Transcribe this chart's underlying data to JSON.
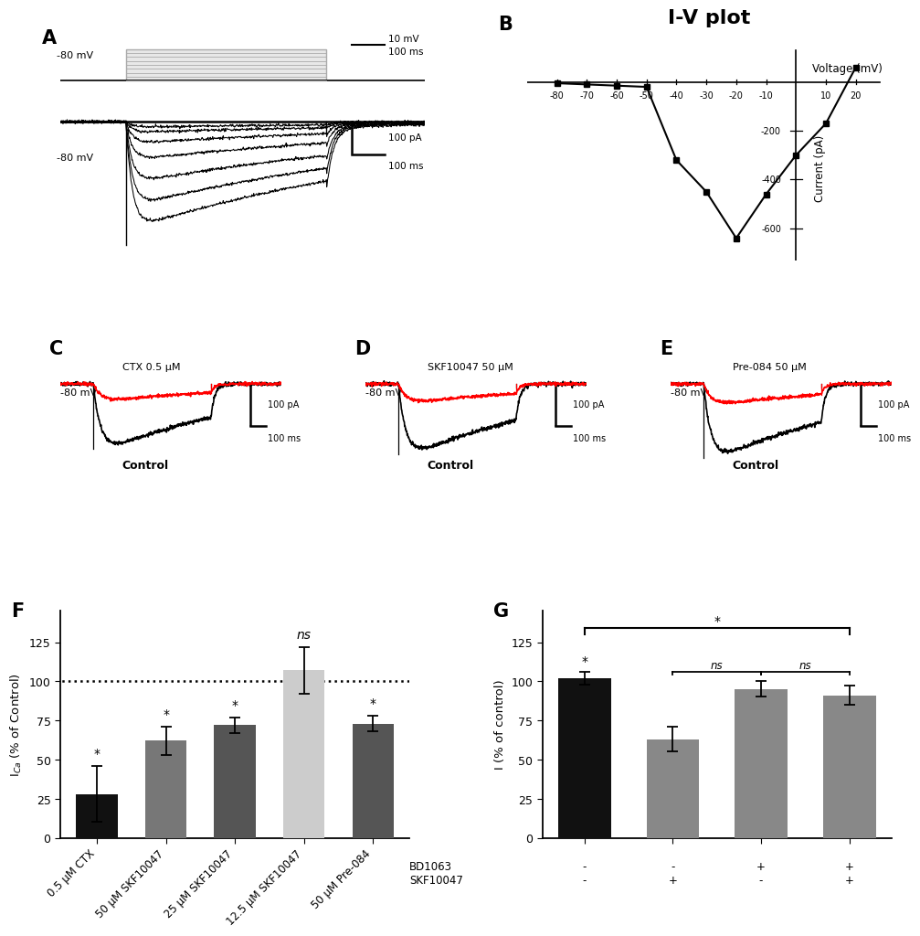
{
  "panel_labels": [
    "A",
    "B",
    "C",
    "D",
    "E",
    "F",
    "G"
  ],
  "iv_voltage": [
    -80,
    -70,
    -60,
    -50,
    -40,
    -30,
    -20,
    -10,
    0,
    10,
    20
  ],
  "iv_current": [
    -5,
    -10,
    -15,
    -20,
    -320,
    -450,
    -640,
    -460,
    -300,
    -170,
    60
  ],
  "bar_F_labels": [
    "0.5 μM CTX",
    "50 μM SKF10047",
    "25 μM SKF10047",
    "12.5 μM SKF10047",
    "50 μM Pre-084"
  ],
  "bar_F_values": [
    28,
    62,
    72,
    107,
    73
  ],
  "bar_F_errors": [
    18,
    9,
    5,
    15,
    5
  ],
  "bar_F_colors": [
    "#111111",
    "#777777",
    "#555555",
    "#cccccc",
    "#555555"
  ],
  "bar_G_values": [
    102,
    63,
    95,
    91
  ],
  "bar_G_errors": [
    4,
    8,
    5,
    6
  ],
  "bar_G_colors": [
    "#111111",
    "#888888",
    "#888888",
    "#888888"
  ],
  "bar_G_bd1063": [
    "-",
    "-",
    "+",
    "+"
  ],
  "bar_G_skf": [
    "-",
    "+",
    "-",
    "+"
  ]
}
